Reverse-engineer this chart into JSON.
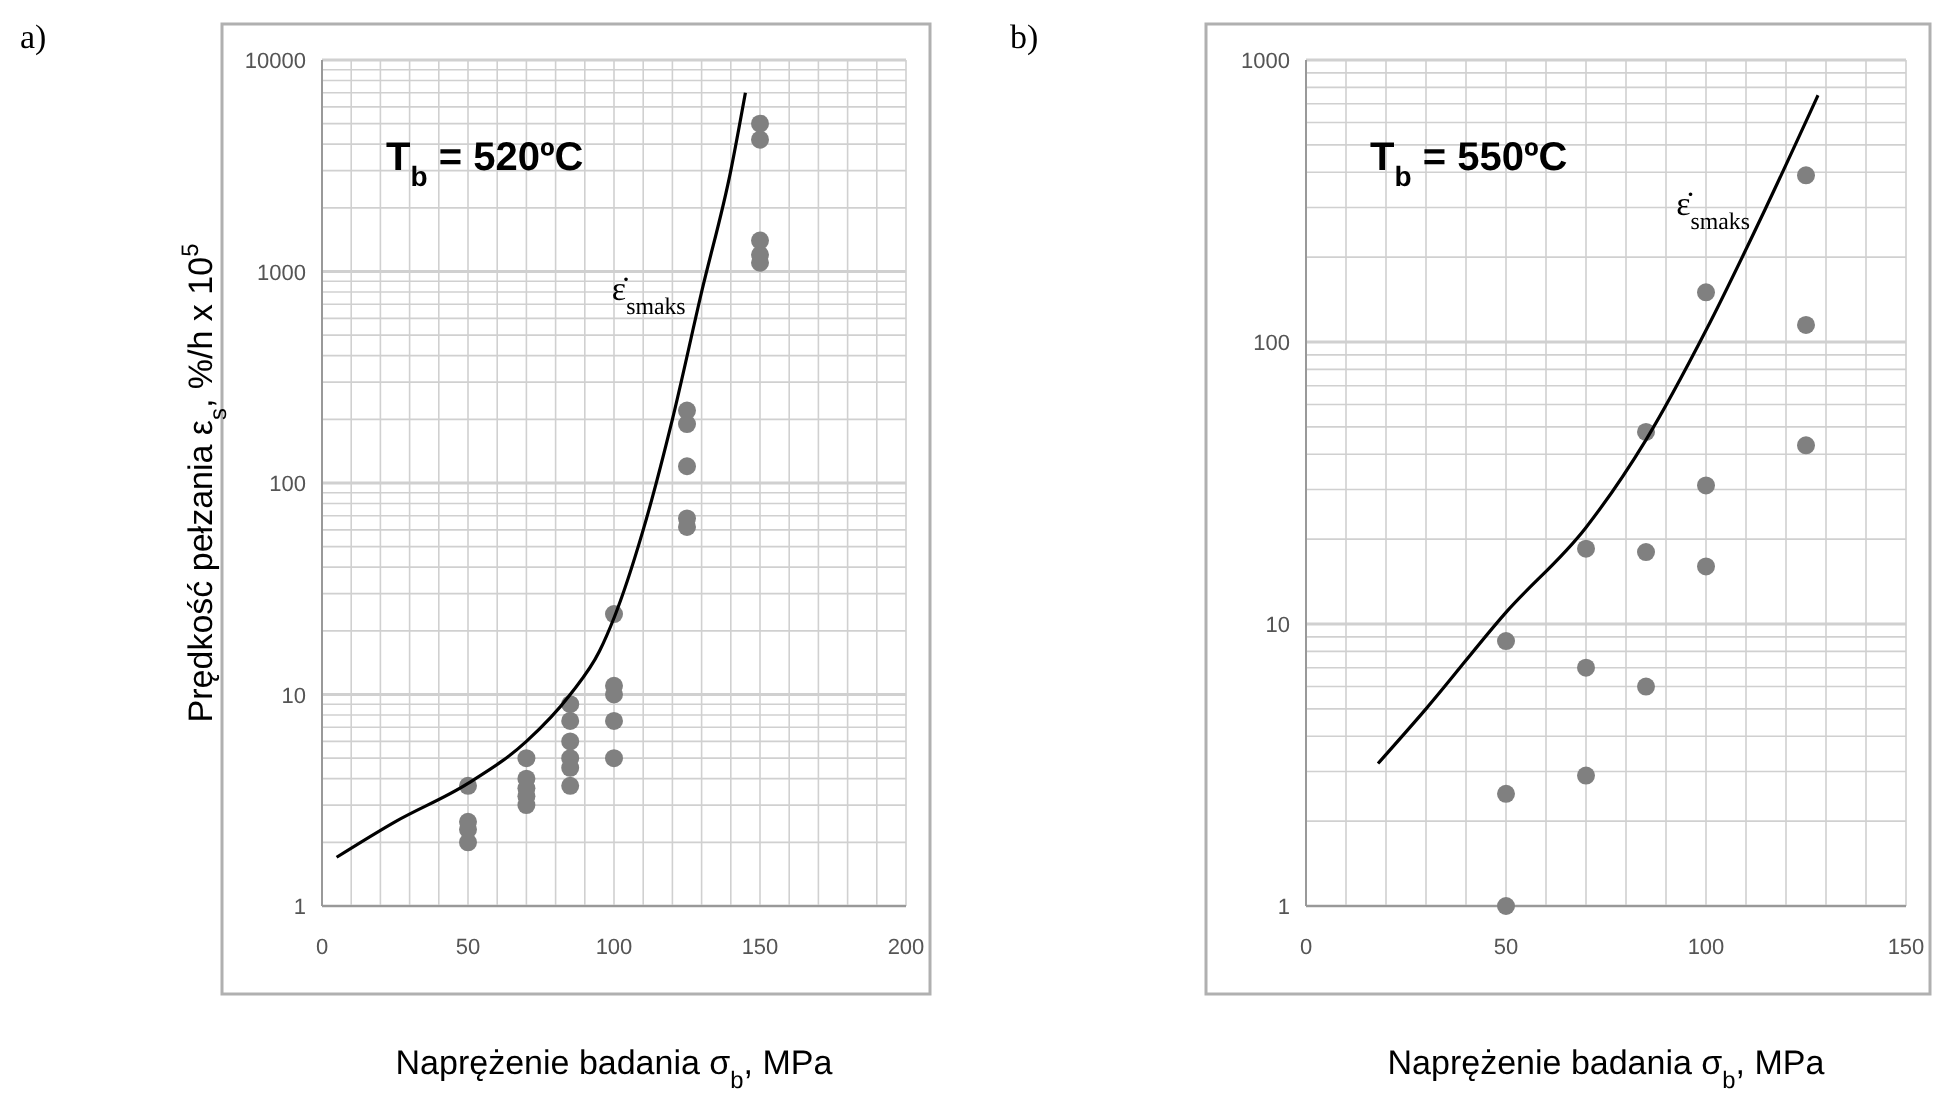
{
  "chart_data": [
    {
      "type": "scatter",
      "annotations": [
        "a)",
        "T$_{b}$ = 520ºC"
      ],
      "xlabel": "Naprężenie badania σ$_{b}$, MPa",
      "ylabel": "Prędkość pełzania ε$_{s}$, %/h x 10$^{5}$",
      "log": "y",
      "grid": true,
      "marker": "circle",
      "xlim": [
        0,
        200
      ],
      "xticks": [
        0,
        50,
        100,
        150,
        200
      ],
      "ylim": [
        1,
        10000
      ],
      "yticks": [
        1,
        10,
        100,
        1000,
        10000
      ],
      "series": [
        {
          "color": "#808080",
          "x": [
            50,
            50,
            50,
            50,
            70,
            70,
            70,
            70,
            70,
            85,
            85,
            85,
            85,
            85,
            85,
            100,
            100,
            100,
            100,
            100,
            125,
            125,
            125,
            125,
            125,
            150,
            150,
            150,
            150,
            150
          ],
          "values": [
            3.7,
            2.5,
            2.3,
            2.0,
            5,
            4,
            3.6,
            3.3,
            3.0,
            9,
            7.5,
            6,
            5,
            4.5,
            3.7,
            24,
            11,
            10,
            7.5,
            5,
            220,
            190,
            120,
            68,
            62,
            5000,
            4200,
            1400,
            1200,
            1100
          ]
        },
        {
          "type": "line",
          "name": "ε̇$_{smaks}$",
          "color": "#000000",
          "marker": "none",
          "line_style": "solid",
          "x": [
            5,
            25,
            50,
            70,
            85,
            95,
            100,
            110,
            120,
            130,
            140,
            145
          ],
          "values": [
            1.7,
            2.5,
            3.8,
            6,
            10,
            16,
            23,
            60,
            200,
            800,
            3000,
            7000
          ]
        }
      ]
    },
    {
      "type": "scatter",
      "annotations": [
        "b)",
        "T$_{b}$ = 550ºC"
      ],
      "xlabel": "Naprężenie badania σ$_{b}$, MPa",
      "log": "y",
      "grid": true,
      "marker": "circle",
      "xlim": [
        0,
        150
      ],
      "xticks": [
        0,
        50,
        100,
        150
      ],
      "ylim": [
        1,
        1000
      ],
      "yticks": [
        1,
        10,
        100,
        1000
      ],
      "series": [
        {
          "color": "#808080",
          "x": [
            50,
            50,
            50,
            70,
            70,
            70,
            85,
            85,
            85,
            100,
            100,
            100,
            125,
            125,
            125
          ],
          "values": [
            8.7,
            2.5,
            1.0,
            18.5,
            7,
            2.9,
            48,
            18,
            6,
            150,
            31,
            16,
            390,
            115,
            43
          ]
        },
        {
          "type": "line",
          "name": "ε̇$_{smaks}$",
          "color": "#000000",
          "marker": "none",
          "line_style": "solid",
          "x": [
            18,
            30,
            50,
            70,
            85,
            100,
            115,
            128
          ],
          "values": [
            3.2,
            5,
            11,
            22,
            45,
            110,
            300,
            750
          ]
        }
      ]
    }
  ]
}
